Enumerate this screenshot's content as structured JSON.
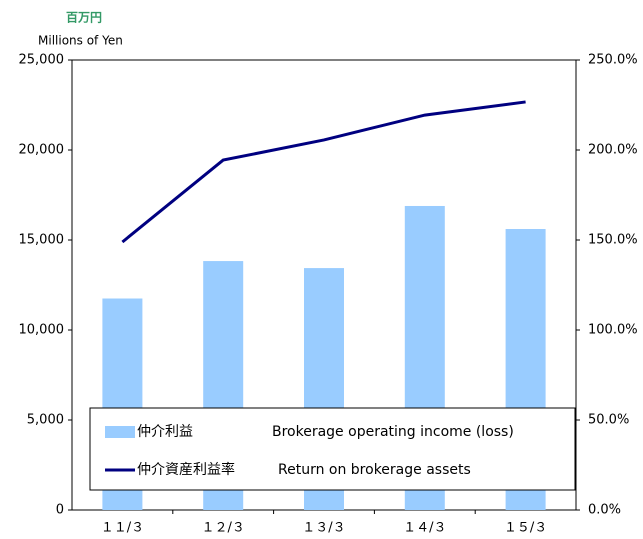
{
  "chart_data": {
    "type": "bar_line",
    "y_axis_label_ja": "百万円",
    "y_axis_label": "Millions of Yen",
    "categories": [
      "１１/３",
      "１２/３",
      "１３/３",
      "１４/３",
      "１５/３"
    ],
    "series": [
      {
        "name": "仲介利益",
        "name_en": "Brokerage operating income (loss)",
        "type": "bar",
        "color": "#99ccff",
        "values": [
          11750,
          13830,
          13440,
          16890,
          15610
        ]
      },
      {
        "name": "仲介資産利益率",
        "name_en": "Return on brokerage assets",
        "type": "line",
        "axis": "y2",
        "color": "#000080",
        "values": [
          148.9,
          194.4,
          205.6,
          219.4,
          226.7
        ]
      }
    ],
    "ylim": [
      0,
      25000
    ],
    "yticks": [
      0,
      {
        "value": 5000,
        "label": "5,000"
      },
      {
        "value": 10000,
        "label": "10,000"
      },
      {
        "value": 15000,
        "label": "15,000"
      },
      {
        "value": 20000,
        "label": "20,000"
      },
      {
        "value": 25000,
        "label": "25,000"
      }
    ],
    "y2lim": [
      0,
      250
    ],
    "y2ticks": [
      {
        "value": 0,
        "label": "0.0%"
      },
      {
        "value": 50,
        "label": "50.0%"
      },
      {
        "value": 100,
        "label": "100.0%"
      },
      {
        "value": 150,
        "label": "150.0%"
      },
      {
        "value": 200,
        "label": "200.0%"
      },
      {
        "value": 250,
        "label": "250.0%"
      }
    ],
    "grid": false
  }
}
